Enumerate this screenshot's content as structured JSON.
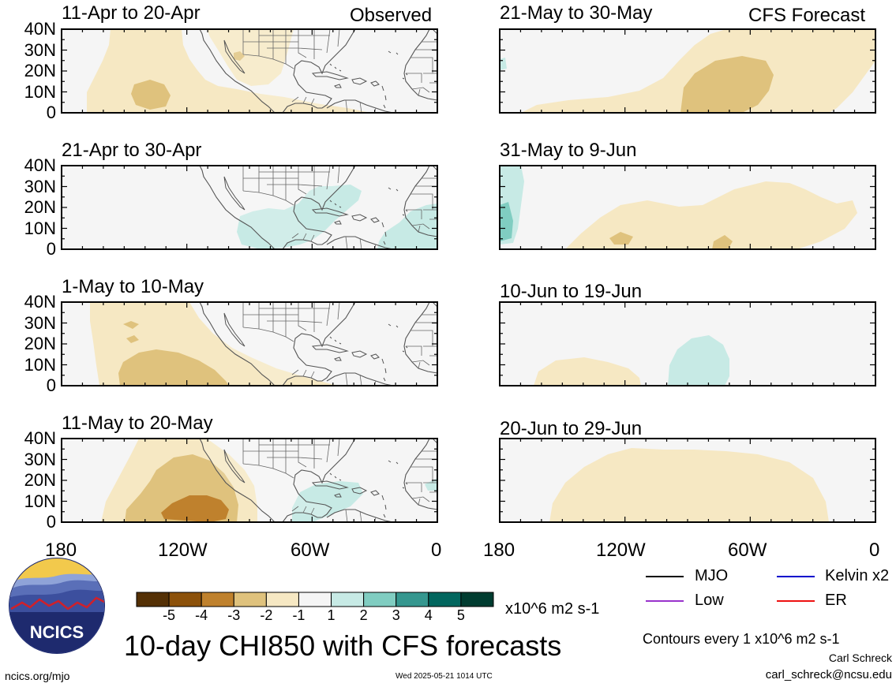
{
  "header": {
    "observed_label": "Observed",
    "forecast_label": "CFS Forecast"
  },
  "lat_ticks": [
    "40N",
    "30N",
    "20N",
    "10N",
    "0"
  ],
  "lon_ticks": [
    "180",
    "120W",
    "60W",
    "0"
  ],
  "panels": [
    {
      "title": "11-Apr to 20-Apr",
      "column": "observed"
    },
    {
      "title": "21-Apr to 30-Apr",
      "column": "observed"
    },
    {
      "title": "1-May to 10-May",
      "column": "observed"
    },
    {
      "title": "11-May to 20-May",
      "column": "observed"
    },
    {
      "title": "21-May to 30-May",
      "column": "forecast"
    },
    {
      "title": "31-May to 9-Jun",
      "column": "forecast"
    },
    {
      "title": "10-Jun to 19-Jun",
      "column": "forecast"
    },
    {
      "title": "20-Jun to 29-Jun",
      "column": "forecast"
    }
  ],
  "colorbar": {
    "tick_labels": [
      "-5",
      "-4",
      "-3",
      "-2",
      "-1",
      "1",
      "2",
      "3",
      "4",
      "5"
    ],
    "colors": [
      "#543005",
      "#8c510a",
      "#bf812d",
      "#dfc27d",
      "#f6e8c3",
      "#f5f5f5",
      "#c7eae5",
      "#80cdc1",
      "#35978f",
      "#01665e",
      "#003c30"
    ],
    "units": "x10^6 m2 s-1"
  },
  "legend": [
    {
      "label": "MJO",
      "color": "#000000"
    },
    {
      "label": "Kelvin x2",
      "color": "#0000cc"
    },
    {
      "label": "Low",
      "color": "#9933cc"
    },
    {
      "label": "ER",
      "color": "#ee1111"
    }
  ],
  "title": "10-day CHI850 with CFS forecasts",
  "contour_note": "Contours every 1 x10^6 m2 s-1",
  "author": "Carl Schreck",
  "email": "carl_schreck@ncsu.edu",
  "url": "ncics.org/mjo",
  "timestamp": "Wed 2025-05-21 1014 UTC",
  "logo_text": "NCICS"
}
